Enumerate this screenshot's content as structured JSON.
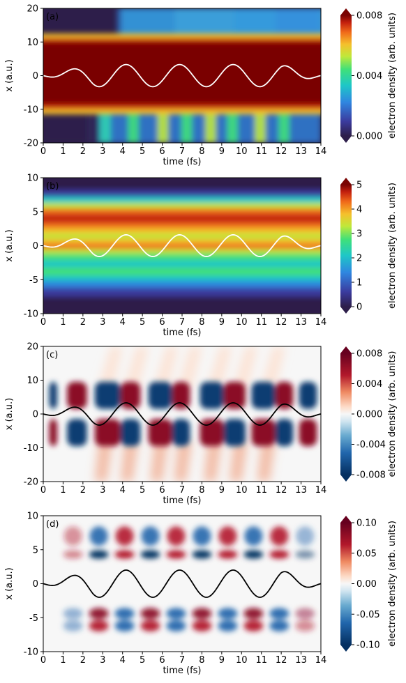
{
  "chart_data": [
    {
      "type": "heatmap",
      "panel_label": "(a)",
      "xlabel": "time (fs)",
      "ylabel": "x (a.u.)",
      "xlim": [
        0,
        14
      ],
      "ylim": [
        -20,
        20
      ],
      "xticks": [
        "0",
        "1",
        "2",
        "3",
        "4",
        "5",
        "6",
        "7",
        "8",
        "9",
        "10",
        "11",
        "12",
        "13",
        "14"
      ],
      "yticks": [
        "20",
        "10",
        "0",
        "-10",
        "-20"
      ],
      "colorbar": {
        "label": "electron density (arb. units)",
        "range": [
          0,
          0.008
        ],
        "ticks": [
          "0.008",
          "0.004",
          "0.000"
        ],
        "colormap": "jet-like",
        "extend": "both"
      },
      "overlay_line": {
        "color": "#ffffff",
        "description_amplitude": 3.3,
        "period_fs": 2.7
      }
    },
    {
      "type": "heatmap",
      "panel_label": "(b)",
      "xlabel": "time (fs)",
      "ylabel": "x (a.u.)",
      "xlim": [
        0,
        14
      ],
      "ylim": [
        -10,
        10
      ],
      "xticks": [
        "0",
        "1",
        "2",
        "3",
        "4",
        "5",
        "6",
        "7",
        "8",
        "9",
        "10",
        "11",
        "12",
        "13",
        "14"
      ],
      "yticks": [
        "10",
        "5",
        "0",
        "-5",
        "-10"
      ],
      "colorbar": {
        "label": "electron density (arb. units)",
        "range": [
          0,
          5
        ],
        "ticks": [
          "5",
          "4",
          "3",
          "2",
          "1",
          "0"
        ],
        "colormap": "jet-like",
        "extend": "both"
      },
      "overlay_line": {
        "color": "#ffffff",
        "description_amplitude": 1.6,
        "period_fs": 2.7
      }
    },
    {
      "type": "heatmap",
      "panel_label": "(c)",
      "xlabel": "time (fs)",
      "ylabel": "x (a.u.)",
      "xlim": [
        0,
        14
      ],
      "ylim": [
        -20,
        20
      ],
      "xticks": [
        "0",
        "1",
        "2",
        "3",
        "4",
        "5",
        "6",
        "7",
        "8",
        "9",
        "10",
        "11",
        "12",
        "13",
        "14"
      ],
      "yticks": [
        "20",
        "10",
        "0",
        "-10",
        "-20"
      ],
      "colorbar": {
        "label": "electron density (arb. units)",
        "range": [
          -0.008,
          0.008
        ],
        "ticks": [
          "0.008",
          "0.004",
          "0.000",
          "-0.004",
          "-0.008"
        ],
        "colormap": "RdBu",
        "extend": "both"
      },
      "overlay_line": {
        "color": "#000000",
        "description_amplitude": 3.3,
        "period_fs": 2.7
      }
    },
    {
      "type": "heatmap",
      "panel_label": "(d)",
      "xlabel": "time (fs)",
      "ylabel": "x (a.u.)",
      "xlim": [
        0,
        14
      ],
      "ylim": [
        -10,
        10
      ],
      "xticks": [
        "0",
        "1",
        "2",
        "3",
        "4",
        "5",
        "6",
        "7",
        "8",
        "9",
        "10",
        "11",
        "12",
        "13",
        "14"
      ],
      "yticks": [
        "10",
        "5",
        "0",
        "-5",
        "-10"
      ],
      "colorbar": {
        "label": "electron density (arb. units)",
        "range": [
          -0.1,
          0.1
        ],
        "ticks": [
          "0.10",
          "0.05",
          "0.00",
          "-0.05",
          "-0.10"
        ],
        "colormap": "RdBu",
        "extend": "both"
      },
      "overlay_line": {
        "color": "#000000",
        "description_amplitude": 2.0,
        "period_fs": 2.7
      }
    }
  ]
}
